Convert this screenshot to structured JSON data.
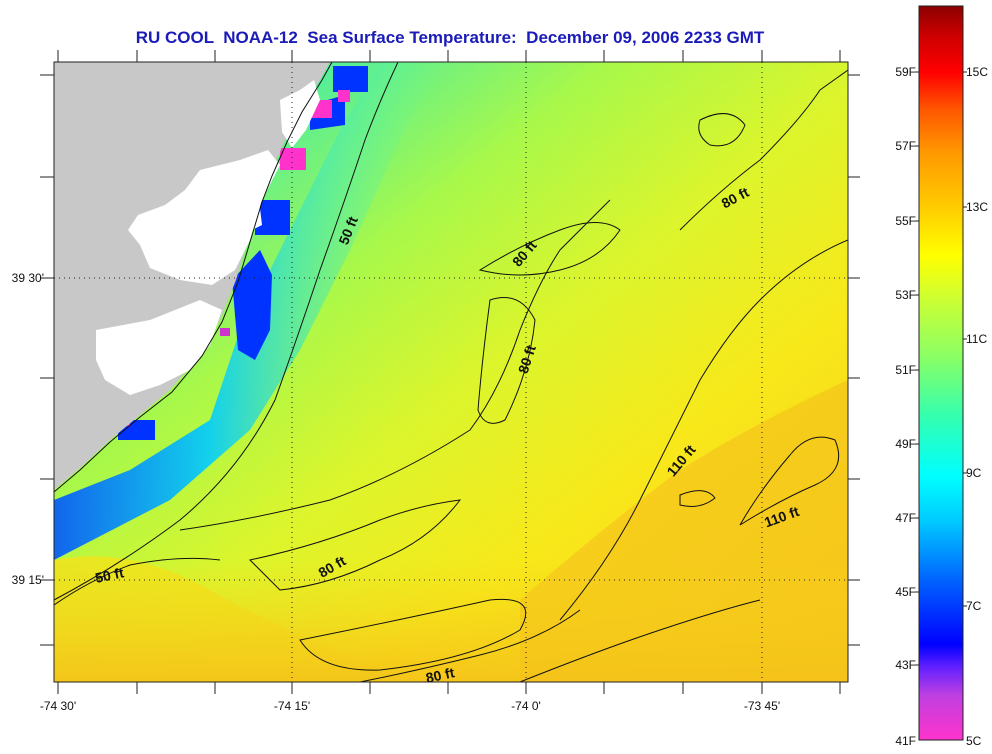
{
  "title": "RU COOL  NOAA-12  Sea Surface Temperature:  December 09, 2006 2233 GMT",
  "axes": {
    "y_ticks": [
      "39 30'",
      "39 15'"
    ],
    "x_ticks": [
      "-74 30'",
      "-74 15'",
      "-74 0'",
      "-73 45'"
    ]
  },
  "contour_labels": [
    "50 ft",
    "80 ft",
    "80 ft",
    "80 ft",
    "80 ft",
    "110 ft",
    "110 ft",
    "50 ft",
    "80 ft"
  ],
  "colorbar": {
    "fahrenheit_labels": [
      "59F",
      "57F",
      "55F",
      "53F",
      "51F",
      "49F",
      "47F",
      "45F",
      "43F",
      "41F"
    ],
    "celsius_labels": [
      "15C",
      "13C",
      "11C",
      "9C",
      "7C",
      "5C"
    ],
    "stops": [
      "#ff33cc",
      "#a020f0",
      "#0000ff",
      "#0066ff",
      "#00c8ff",
      "#00ffff",
      "#33ffb0",
      "#99ff66",
      "#ccff33",
      "#ffff00",
      "#ffd000",
      "#ff9900",
      "#ff5500",
      "#ff0000",
      "#cc0000",
      "#8b0000"
    ]
  },
  "colors": {
    "land": "#c8c8c8",
    "cloud": "#ffffff",
    "title": "#1b1bb8"
  }
}
